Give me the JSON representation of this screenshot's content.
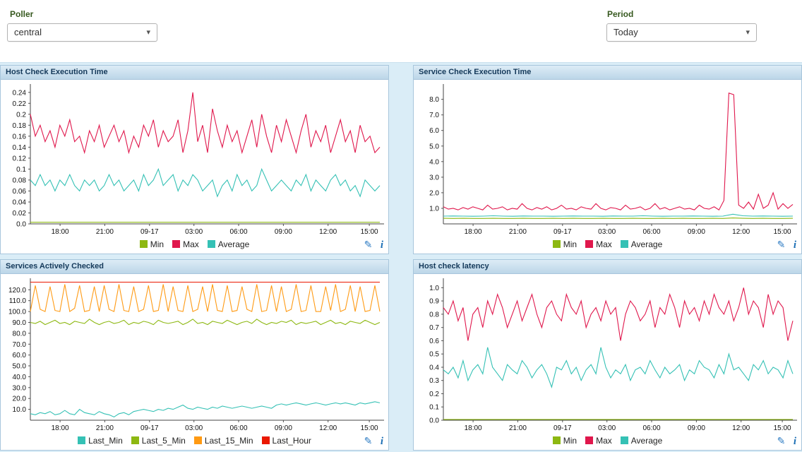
{
  "controls": {
    "poller_label": "Poller",
    "poller_value": "central",
    "period_label": "Period",
    "period_value": "Today"
  },
  "icons": {
    "pencil": "✎",
    "info": "i",
    "chevron": "▾"
  },
  "chart_data": [
    {
      "type": "line",
      "title": "Host Check Execution Time",
      "ylim": [
        0,
        0.25
      ],
      "grid": false,
      "legend_position": "bottom",
      "ytick_values": [
        0,
        0.02,
        0.04,
        0.06,
        0.08,
        0.1,
        0.12,
        0.14,
        0.16,
        0.18,
        0.2,
        0.22,
        0.24
      ],
      "ytick_labels": [
        "0.0",
        "0.02",
        "0.04",
        "0.06",
        "0.08",
        "0.1",
        "0.12",
        "0.14",
        "0.16",
        "0.18",
        "0.2",
        "0.22",
        "0.24"
      ],
      "xticks": [
        "18:00",
        "21:00",
        "09-17",
        "03:00",
        "06:00",
        "09:00",
        "12:00",
        "15:00"
      ],
      "series": [
        {
          "name": "Min",
          "color": "#8db812",
          "values": [
            0.003,
            0.003
          ]
        },
        {
          "name": "Max",
          "color": "#e0174c",
          "values": [
            0.2,
            0.16,
            0.18,
            0.15,
            0.17,
            0.14,
            0.18,
            0.16,
            0.19,
            0.15,
            0.16,
            0.13,
            0.17,
            0.15,
            0.18,
            0.14,
            0.16,
            0.18,
            0.15,
            0.17,
            0.13,
            0.16,
            0.14,
            0.18,
            0.16,
            0.19,
            0.14,
            0.17,
            0.15,
            0.16,
            0.19,
            0.13,
            0.17,
            0.24,
            0.15,
            0.18,
            0.13,
            0.21,
            0.17,
            0.14,
            0.18,
            0.15,
            0.17,
            0.13,
            0.16,
            0.19,
            0.14,
            0.2,
            0.16,
            0.13,
            0.18,
            0.15,
            0.19,
            0.16,
            0.13,
            0.17,
            0.2,
            0.14,
            0.17,
            0.15,
            0.18,
            0.13,
            0.16,
            0.19,
            0.15,
            0.17,
            0.13,
            0.18,
            0.15,
            0.16,
            0.13,
            0.14
          ]
        },
        {
          "name": "Average",
          "color": "#35c1b5",
          "values": [
            0.08,
            0.07,
            0.09,
            0.07,
            0.08,
            0.06,
            0.08,
            0.07,
            0.09,
            0.07,
            0.06,
            0.08,
            0.07,
            0.08,
            0.06,
            0.07,
            0.09,
            0.07,
            0.08,
            0.06,
            0.07,
            0.08,
            0.06,
            0.09,
            0.07,
            0.08,
            0.1,
            0.07,
            0.08,
            0.09,
            0.06,
            0.08,
            0.07,
            0.09,
            0.08,
            0.06,
            0.07,
            0.08,
            0.05,
            0.07,
            0.08,
            0.06,
            0.09,
            0.07,
            0.08,
            0.06,
            0.07,
            0.1,
            0.08,
            0.06,
            0.07,
            0.08,
            0.07,
            0.06,
            0.08,
            0.07,
            0.09,
            0.06,
            0.08,
            0.07,
            0.06,
            0.08,
            0.09,
            0.07,
            0.08,
            0.06,
            0.07,
            0.05,
            0.08,
            0.07,
            0.06,
            0.07
          ]
        }
      ]
    },
    {
      "type": "line",
      "title": "Service Check Execution Time",
      "ylim": [
        0,
        8.8
      ],
      "grid": false,
      "legend_position": "bottom",
      "ytick_values": [
        1,
        2,
        3,
        4,
        5,
        6,
        7,
        8
      ],
      "ytick_labels": [
        "1.0",
        "2.0",
        "3.0",
        "4.0",
        "5.0",
        "6.0",
        "7.0",
        "8.0"
      ],
      "xticks": [
        "18:00",
        "21:00",
        "09-17",
        "03:00",
        "06:00",
        "09:00",
        "12:00",
        "15:00"
      ],
      "series": [
        {
          "name": "Min",
          "color": "#8db812",
          "values": [
            0.36,
            0.35,
            0.36,
            0.35,
            0.35,
            0.36,
            0.35,
            0.35,
            0.36,
            0.35,
            0.35,
            0.36,
            0.35,
            0.36,
            0.35,
            0.35,
            0.36,
            0.35,
            0.35,
            0.36,
            0.35,
            0.35,
            0.36,
            0.35,
            0.36,
            0.35,
            0.35,
            0.36,
            0.35,
            0.38,
            0.36,
            0.35,
            0.36,
            0.35,
            0.35,
            0.36
          ]
        },
        {
          "name": "Max",
          "color": "#e0174c",
          "values": [
            1.1,
            0.95,
            1.0,
            0.9,
            1.05,
            0.95,
            1.1,
            1.0,
            0.9,
            1.2,
            0.95,
            1.0,
            1.1,
            0.9,
            1.0,
            0.95,
            1.3,
            1.0,
            0.9,
            1.05,
            0.95,
            1.1,
            0.9,
            1.0,
            1.2,
            0.95,
            1.0,
            0.9,
            1.1,
            1.0,
            0.95,
            1.3,
            1.0,
            0.9,
            1.05,
            1.0,
            0.9,
            1.2,
            0.95,
            1.0,
            1.1,
            0.9,
            1.0,
            1.3,
            0.95,
            1.05,
            0.9,
            1.0,
            1.1,
            0.95,
            1.0,
            0.9,
            1.2,
            1.0,
            0.95,
            1.1,
            0.9,
            1.5,
            8.4,
            8.3,
            1.2,
            1.0,
            1.4,
            0.95,
            1.9,
            1.0,
            1.2,
            2.0,
            0.95,
            1.3,
            1.0,
            1.25
          ]
        },
        {
          "name": "Average",
          "color": "#35c1b5",
          "values": [
            0.5,
            0.51,
            0.5,
            0.49,
            0.5,
            0.52,
            0.5,
            0.49,
            0.51,
            0.5,
            0.5,
            0.49,
            0.5,
            0.51,
            0.5,
            0.5,
            0.49,
            0.51,
            0.5,
            0.5,
            0.52,
            0.5,
            0.49,
            0.5,
            0.5,
            0.51,
            0.5,
            0.49,
            0.5,
            0.62,
            0.52,
            0.5,
            0.51,
            0.5,
            0.49,
            0.5
          ]
        }
      ]
    },
    {
      "type": "line",
      "title": "Services Actively Checked",
      "ylim": [
        0,
        128
      ],
      "grid": false,
      "legend_position": "bottom",
      "ytick_values": [
        10,
        20,
        30,
        40,
        50,
        60,
        70,
        80,
        90,
        100,
        110,
        120
      ],
      "ytick_labels": [
        "10.0",
        "20.0",
        "30.0",
        "40.0",
        "50.0",
        "60.0",
        "70.0",
        "80.0",
        "90.0",
        "100.0",
        "110.0",
        "120.0"
      ],
      "xticks": [
        "18:00",
        "21:00",
        "09-17",
        "03:00",
        "06:00",
        "09:00",
        "12:00",
        "15:00"
      ],
      "series": [
        {
          "name": "Last_Min",
          "color": "#35c1b5",
          "values": [
            6,
            5,
            7,
            6,
            8,
            5,
            6,
            9,
            6,
            5,
            10,
            7,
            6,
            5,
            8,
            6,
            5,
            3,
            6,
            7,
            5,
            8,
            9,
            10,
            9,
            8,
            10,
            9,
            11,
            10,
            12,
            14,
            11,
            10,
            12,
            11,
            10,
            12,
            11,
            13,
            12,
            11,
            12,
            13,
            12,
            11,
            12,
            13,
            12,
            11,
            14,
            15,
            14,
            15,
            16,
            15,
            14,
            15,
            16,
            15,
            14,
            15,
            16,
            15,
            16,
            15,
            14,
            16,
            15,
            16,
            17,
            16
          ]
        },
        {
          "name": "Last_5_Min",
          "color": "#8db812",
          "values": [
            90,
            89,
            91,
            88,
            90,
            92,
            89,
            90,
            88,
            91,
            90,
            89,
            93,
            90,
            88,
            90,
            91,
            89,
            90,
            92,
            88,
            90,
            89,
            91,
            90,
            88,
            92,
            90,
            89,
            90,
            91,
            88,
            90,
            93,
            89,
            90,
            88,
            91,
            90,
            89,
            92,
            90,
            88,
            90,
            91,
            89,
            93,
            90,
            88,
            90,
            89,
            91,
            90,
            92,
            88,
            90,
            89,
            90,
            91,
            88,
            90,
            92,
            89,
            90,
            88,
            91,
            90,
            89,
            92,
            90,
            88,
            90
          ]
        },
        {
          "name": "Last_15_Min",
          "color": "#ff9a13",
          "values": [
            100,
            124,
            102,
            100,
            123,
            101,
            100,
            125,
            100,
            103,
            124,
            100,
            101,
            123,
            100,
            124,
            102,
            100,
            125,
            101,
            100,
            123,
            100,
            102,
            124,
            100,
            101,
            125,
            100,
            123,
            101,
            100,
            124,
            100,
            102,
            123,
            100,
            125,
            101,
            100,
            124,
            100,
            101,
            123,
            102,
            100,
            125,
            100,
            101,
            124,
            100,
            123,
            100,
            102,
            125,
            100,
            101,
            124,
            100,
            100,
            123,
            101,
            125,
            100,
            102,
            124,
            100,
            123,
            100,
            101,
            124,
            100
          ]
        },
        {
          "name": "Last_Hour",
          "color": "#ea1800",
          "values": [
            127,
            127
          ]
        }
      ]
    },
    {
      "type": "line",
      "title": "Host check latency",
      "ylim": [
        0,
        1.05
      ],
      "grid": false,
      "legend_position": "bottom",
      "ytick_values": [
        0,
        0.1,
        0.2,
        0.3,
        0.4,
        0.5,
        0.6,
        0.7,
        0.8,
        0.9,
        1.0
      ],
      "ytick_labels": [
        "0.0",
        "0.1",
        "0.2",
        "0.3",
        "0.4",
        "0.5",
        "0.6",
        "0.7",
        "0.8",
        "0.9",
        "1.0"
      ],
      "xticks": [
        "18:00",
        "21:00",
        "09-17",
        "03:00",
        "06:00",
        "09:00",
        "12:00",
        "15:00"
      ],
      "series": [
        {
          "name": "Min",
          "color": "#8db812",
          "values": [
            0.006,
            0.006
          ]
        },
        {
          "name": "Max",
          "color": "#e0174c",
          "values": [
            0.85,
            0.8,
            0.9,
            0.75,
            0.85,
            0.6,
            0.8,
            0.85,
            0.7,
            0.9,
            0.8,
            0.95,
            0.85,
            0.7,
            0.8,
            0.9,
            0.75,
            0.85,
            0.95,
            0.8,
            0.7,
            0.85,
            0.9,
            0.8,
            0.75,
            0.95,
            0.85,
            0.8,
            0.9,
            0.7,
            0.8,
            0.85,
            0.75,
            0.9,
            0.8,
            0.85,
            0.6,
            0.8,
            0.9,
            0.85,
            0.75,
            0.8,
            0.9,
            0.7,
            0.85,
            0.8,
            0.95,
            0.85,
            0.7,
            0.9,
            0.8,
            0.85,
            0.75,
            0.9,
            0.8,
            0.95,
            0.85,
            0.8,
            0.9,
            0.75,
            0.85,
            1.0,
            0.8,
            0.9,
            0.85,
            0.7,
            0.95,
            0.8,
            0.9,
            0.85,
            0.6,
            0.75
          ]
        },
        {
          "name": "Average",
          "color": "#35c1b5",
          "values": [
            0.38,
            0.35,
            0.4,
            0.32,
            0.45,
            0.3,
            0.38,
            0.42,
            0.35,
            0.55,
            0.4,
            0.35,
            0.3,
            0.42,
            0.38,
            0.35,
            0.45,
            0.4,
            0.32,
            0.38,
            0.42,
            0.35,
            0.25,
            0.4,
            0.38,
            0.45,
            0.35,
            0.4,
            0.3,
            0.38,
            0.42,
            0.35,
            0.55,
            0.4,
            0.32,
            0.38,
            0.35,
            0.42,
            0.3,
            0.38,
            0.4,
            0.35,
            0.45,
            0.38,
            0.32,
            0.4,
            0.35,
            0.38,
            0.42,
            0.3,
            0.38,
            0.35,
            0.45,
            0.4,
            0.38,
            0.32,
            0.42,
            0.35,
            0.5,
            0.38,
            0.4,
            0.35,
            0.3,
            0.42,
            0.38,
            0.45,
            0.35,
            0.4,
            0.38,
            0.32,
            0.45,
            0.35
          ]
        }
      ]
    }
  ]
}
